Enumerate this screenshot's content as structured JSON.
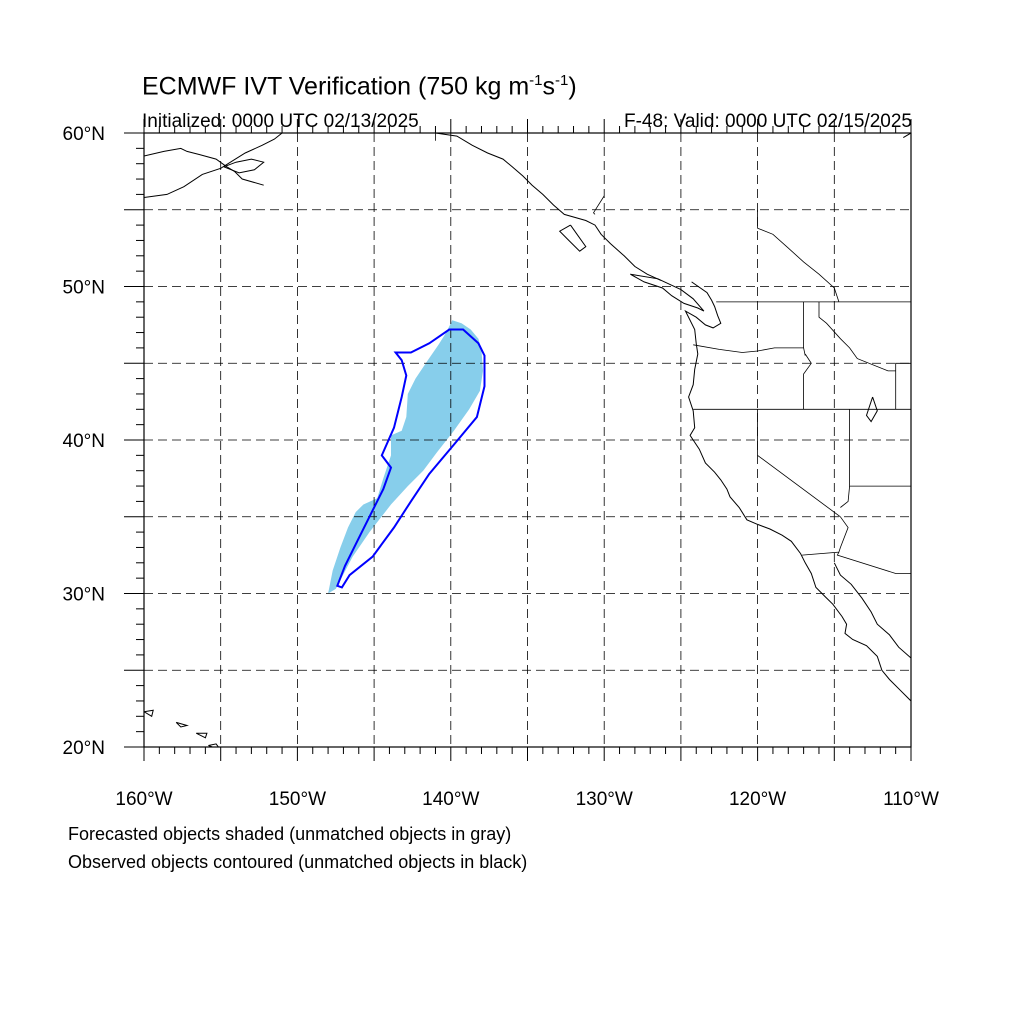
{
  "title": {
    "prefix": "ECMWF IVT Verification (750 kg m",
    "exp1": "-1",
    "mid": "s",
    "exp2": "-1",
    "suffix": ")"
  },
  "initialized": "Initialized: 0000 UTC 02/13/2025",
  "valid": "F-48: Valid: 0000 UTC 02/15/2025",
  "lat_labels": [
    {
      "lat": 60,
      "text": "60°N"
    },
    {
      "lat": 50,
      "text": "50°N"
    },
    {
      "lat": 40,
      "text": "40°N"
    },
    {
      "lat": 30,
      "text": "30°N"
    },
    {
      "lat": 20,
      "text": "20°N"
    }
  ],
  "lon_labels": [
    {
      "lon": -160,
      "text": "160°W"
    },
    {
      "lon": -150,
      "text": "150°W"
    },
    {
      "lon": -140,
      "text": "140°W"
    },
    {
      "lon": -130,
      "text": "130°W"
    },
    {
      "lon": -120,
      "text": "120°W"
    },
    {
      "lon": -110,
      "text": "110°W"
    }
  ],
  "footnotes": [
    "Forecasted objects shaded (unmatched objects in gray)",
    "Observed objects contoured (unmatched objects in black)"
  ],
  "colors": {
    "forecast_fill": "#87ceeb",
    "observed_contour": "#0000ff",
    "coastline": "#000000",
    "grid": "#000000"
  },
  "map_extent": {
    "lon_min": -160,
    "lon_max": -110,
    "lat_min": 20,
    "lat_max": 60
  },
  "forecast_object": [
    [
      -148.0,
      30.0
    ],
    [
      -147.7,
      31.5
    ],
    [
      -147.2,
      33.0
    ],
    [
      -146.7,
      34.3
    ],
    [
      -146.2,
      35.3
    ],
    [
      -145.7,
      35.8
    ],
    [
      -144.8,
      36.2
    ],
    [
      -144.4,
      37.5
    ],
    [
      -143.9,
      39.0
    ],
    [
      -143.9,
      40.3
    ],
    [
      -143.2,
      40.6
    ],
    [
      -142.9,
      41.5
    ],
    [
      -142.8,
      43.0
    ],
    [
      -142.3,
      44.0
    ],
    [
      -141.5,
      45.2
    ],
    [
      -140.8,
      46.2
    ],
    [
      -140.3,
      47.0
    ],
    [
      -139.9,
      47.8
    ],
    [
      -139.3,
      47.6
    ],
    [
      -138.7,
      47.2
    ],
    [
      -138.2,
      46.6
    ],
    [
      -138.0,
      45.8
    ],
    [
      -137.9,
      44.5
    ],
    [
      -138.1,
      43.2
    ],
    [
      -138.8,
      42.0
    ],
    [
      -139.8,
      40.6
    ],
    [
      -140.9,
      39.2
    ],
    [
      -141.8,
      38.0
    ],
    [
      -142.8,
      37.0
    ],
    [
      -143.9,
      35.8
    ],
    [
      -145.3,
      34.0
    ],
    [
      -146.4,
      32.4
    ],
    [
      -147.5,
      30.3
    ]
  ],
  "observed_object": [
    [
      -147.4,
      30.5
    ],
    [
      -146.9,
      31.8
    ],
    [
      -146.1,
      33.4
    ],
    [
      -145.2,
      35.2
    ],
    [
      -144.4,
      36.8
    ],
    [
      -143.9,
      38.2
    ],
    [
      -144.5,
      39.0
    ],
    [
      -143.7,
      40.8
    ],
    [
      -143.2,
      42.8
    ],
    [
      -142.9,
      44.2
    ],
    [
      -143.2,
      45.2
    ],
    [
      -143.6,
      45.7
    ],
    [
      -142.6,
      45.7
    ],
    [
      -141.4,
      46.3
    ],
    [
      -140.1,
      47.2
    ],
    [
      -139.2,
      47.2
    ],
    [
      -138.2,
      46.3
    ],
    [
      -137.8,
      45.5
    ],
    [
      -137.8,
      43.5
    ],
    [
      -138.3,
      41.5
    ],
    [
      -139.8,
      39.7
    ],
    [
      -141.4,
      37.8
    ],
    [
      -142.6,
      36.0
    ],
    [
      -143.7,
      34.3
    ],
    [
      -145.1,
      32.4
    ],
    [
      -146.6,
      31.2
    ],
    [
      -147.1,
      30.4
    ],
    [
      -147.4,
      30.5
    ]
  ],
  "coastlines": [
    [
      [
        -160.0,
        58.5
      ],
      [
        -158.7,
        58.8
      ],
      [
        -157.6,
        59.0
      ],
      [
        -157.2,
        58.8
      ],
      [
        -156.4,
        58.6
      ],
      [
        -155.3,
        58.3
      ],
      [
        -154.6,
        57.8
      ],
      [
        -154.1,
        57.5
      ],
      [
        -153.6,
        57.0
      ],
      [
        -152.2,
        56.6
      ]
    ],
    [
      [
        -160.0,
        55.8
      ],
      [
        -158.5,
        56.0
      ],
      [
        -157.4,
        56.5
      ],
      [
        -156.2,
        57.3
      ],
      [
        -155.0,
        57.7
      ],
      [
        -154.2,
        58.2
      ],
      [
        -153.4,
        58.7
      ],
      [
        -152.3,
        59.2
      ],
      [
        -151.5,
        59.6
      ],
      [
        -151.0,
        60.0
      ]
    ],
    [
      [
        -154.8,
        57.8
      ],
      [
        -153.8,
        57.4
      ],
      [
        -152.8,
        57.6
      ],
      [
        -152.2,
        58.1
      ],
      [
        -153.0,
        58.3
      ],
      [
        -154.0,
        58.1
      ],
      [
        -154.8,
        57.8
      ]
    ],
    [
      [
        -148.5,
        60.0
      ],
      [
        -147.0,
        60.0
      ],
      [
        -145.8,
        60.3
      ]
    ],
    [
      [
        -141.0,
        60.0
      ],
      [
        -139.6,
        59.8
      ],
      [
        -138.6,
        59.2
      ],
      [
        -137.6,
        58.7
      ],
      [
        -136.6,
        58.3
      ],
      [
        -136.0,
        57.8
      ],
      [
        -135.3,
        57.2
      ],
      [
        -134.7,
        56.6
      ],
      [
        -134.0,
        56.0
      ],
      [
        -133.3,
        55.3
      ],
      [
        -132.6,
        54.7
      ],
      [
        -131.2,
        54.3
      ],
      [
        -130.6,
        54.0
      ],
      [
        -130.2,
        53.4
      ],
      [
        -129.6,
        52.8
      ],
      [
        -128.7,
        52.0
      ],
      [
        -128.0,
        51.3
      ],
      [
        -127.2,
        50.8
      ],
      [
        -126.3,
        50.4
      ]
    ],
    [
      [
        -132.2,
        54.0
      ],
      [
        -132.9,
        53.6
      ],
      [
        -132.3,
        53.0
      ],
      [
        -131.6,
        52.3
      ],
      [
        -131.2,
        52.6
      ],
      [
        -131.7,
        53.3
      ],
      [
        -132.2,
        54.0
      ]
    ],
    [
      [
        -128.3,
        50.8
      ],
      [
        -127.4,
        50.3
      ],
      [
        -126.2,
        49.9
      ],
      [
        -125.6,
        49.4
      ],
      [
        -124.8,
        48.9
      ],
      [
        -123.9,
        48.6
      ],
      [
        -123.5,
        48.4
      ],
      [
        -124.2,
        49.2
      ],
      [
        -125.0,
        49.8
      ],
      [
        -126.5,
        50.5
      ],
      [
        -128.3,
        50.8
      ]
    ],
    [
      [
        -124.3,
        50.3
      ],
      [
        -123.3,
        49.6
      ],
      [
        -123.0,
        49.1
      ],
      [
        -122.8,
        48.7
      ],
      [
        -122.6,
        48.1
      ],
      [
        -122.4,
        47.6
      ],
      [
        -122.9,
        47.3
      ],
      [
        -123.4,
        47.5
      ],
      [
        -124.0,
        48.0
      ],
      [
        -124.7,
        48.4
      ],
      [
        -124.1,
        47.2
      ],
      [
        -124.0,
        46.3
      ],
      [
        -123.9,
        45.6
      ],
      [
        -124.1,
        44.6
      ],
      [
        -124.2,
        43.6
      ],
      [
        -124.5,
        42.8
      ],
      [
        -124.2,
        41.9
      ],
      [
        -124.1,
        40.8
      ],
      [
        -124.4,
        40.3
      ],
      [
        -123.8,
        39.4
      ],
      [
        -123.4,
        38.5
      ],
      [
        -122.8,
        37.9
      ],
      [
        -122.4,
        37.4
      ],
      [
        -122.0,
        36.8
      ],
      [
        -121.8,
        36.3
      ],
      [
        -121.2,
        35.6
      ],
      [
        -120.7,
        34.8
      ],
      [
        -120.0,
        34.5
      ],
      [
        -119.2,
        34.2
      ],
      [
        -118.4,
        33.8
      ],
      [
        -117.8,
        33.4
      ],
      [
        -117.2,
        32.6
      ],
      [
        -116.9,
        32.0
      ],
      [
        -116.5,
        31.3
      ],
      [
        -116.2,
        30.4
      ],
      [
        -115.6,
        29.8
      ],
      [
        -115.1,
        29.3
      ],
      [
        -114.5,
        28.5
      ],
      [
        -114.2,
        28.0
      ],
      [
        -114.3,
        27.4
      ],
      [
        -113.8,
        27.0
      ],
      [
        -112.9,
        26.6
      ],
      [
        -112.2,
        25.9
      ],
      [
        -111.9,
        25.0
      ],
      [
        -111.4,
        24.4
      ],
      [
        -110.8,
        23.8
      ],
      [
        -110.0,
        23.0
      ]
    ],
    [
      [
        -115.0,
        32.0
      ],
      [
        -114.6,
        31.2
      ],
      [
        -113.9,
        30.6
      ],
      [
        -113.2,
        29.7
      ],
      [
        -112.6,
        28.8
      ],
      [
        -112.2,
        28.0
      ],
      [
        -111.4,
        27.3
      ],
      [
        -110.8,
        26.5
      ],
      [
        -110.0,
        25.8
      ]
    ],
    [
      [
        -112.5,
        42.8
      ],
      [
        -112.2,
        41.9
      ],
      [
        -112.6,
        41.2
      ],
      [
        -112.9,
        41.6
      ],
      [
        -112.5,
        42.8
      ]
    ],
    [
      [
        -160.0,
        22.3
      ],
      [
        -159.5,
        22.0
      ],
      [
        -159.4,
        22.4
      ],
      [
        -160.0,
        22.3
      ]
    ],
    [
      [
        -157.9,
        21.6
      ],
      [
        -157.6,
        21.3
      ],
      [
        -157.2,
        21.4
      ],
      [
        -157.9,
        21.6
      ]
    ],
    [
      [
        -156.6,
        20.9
      ],
      [
        -156.0,
        20.6
      ],
      [
        -155.9,
        20.9
      ],
      [
        -156.6,
        20.9
      ]
    ],
    [
      [
        -155.8,
        20.1
      ],
      [
        -155.0,
        19.8
      ],
      [
        -155.3,
        20.2
      ],
      [
        -155.8,
        20.1
      ]
    ],
    [
      [
        -110.5,
        59.7
      ],
      [
        -110.0,
        60.0
      ]
    ]
  ],
  "borders": [
    [
      [
        -141.0,
        60.0
      ],
      [
        -141.0,
        59.5
      ]
    ],
    [
      [
        -130.0,
        55.9
      ],
      [
        -130.7,
        54.8
      ],
      [
        -130.6,
        54.7
      ]
    ],
    [
      [
        -122.7,
        49.0
      ],
      [
        -110.0,
        49.0
      ]
    ],
    [
      [
        -124.2,
        46.2
      ],
      [
        -122.5,
        45.9
      ],
      [
        -121.0,
        45.7
      ],
      [
        -120.0,
        45.8
      ],
      [
        -118.9,
        46.0
      ],
      [
        -117.0,
        46.0
      ],
      [
        -116.9,
        45.5
      ]
    ],
    [
      [
        -124.2,
        42.0
      ],
      [
        -110.0,
        42.0
      ]
    ],
    [
      [
        -117.0,
        49.0
      ],
      [
        -117.0,
        46.0
      ]
    ],
    [
      [
        -116.9,
        45.6
      ],
      [
        -116.5,
        45.0
      ],
      [
        -117.0,
        44.3
      ],
      [
        -117.0,
        42.0
      ]
    ],
    [
      [
        -120.0,
        42.0
      ],
      [
        -120.0,
        39.0
      ],
      [
        -114.6,
        35.0
      ]
    ],
    [
      [
        -114.6,
        35.0
      ],
      [
        -114.1,
        34.3
      ],
      [
        -114.6,
        33.0
      ],
      [
        -114.7,
        32.7
      ],
      [
        -117.1,
        32.5
      ]
    ],
    [
      [
        -114.7,
        32.7
      ],
      [
        -114.8,
        32.5
      ],
      [
        -111.0,
        31.3
      ],
      [
        -110.0,
        31.3
      ]
    ],
    [
      [
        -114.0,
        42.0
      ],
      [
        -114.0,
        37.0
      ],
      [
        -110.0,
        37.0
      ]
    ],
    [
      [
        -114.0,
        37.0
      ],
      [
        -114.1,
        36.0
      ],
      [
        -114.6,
        35.6
      ]
    ],
    [
      [
        -111.0,
        42.0
      ],
      [
        -111.0,
        45.0
      ],
      [
        -110.0,
        45.0
      ]
    ],
    [
      [
        -116.0,
        49.0
      ],
      [
        -116.0,
        48.0
      ],
      [
        -115.5,
        47.6
      ],
      [
        -114.6,
        46.6
      ],
      [
        -114.0,
        46.0
      ],
      [
        -113.5,
        45.3
      ],
      [
        -111.5,
        44.5
      ],
      [
        -111.0,
        44.5
      ]
    ],
    [
      [
        -120.0,
        55.0
      ],
      [
        -120.0,
        53.8
      ],
      [
        -119.0,
        53.4
      ],
      [
        -118.0,
        52.5
      ],
      [
        -117.0,
        51.6
      ],
      [
        -116.0,
        50.8
      ],
      [
        -115.0,
        49.9
      ],
      [
        -114.7,
        49.0
      ]
    ]
  ]
}
